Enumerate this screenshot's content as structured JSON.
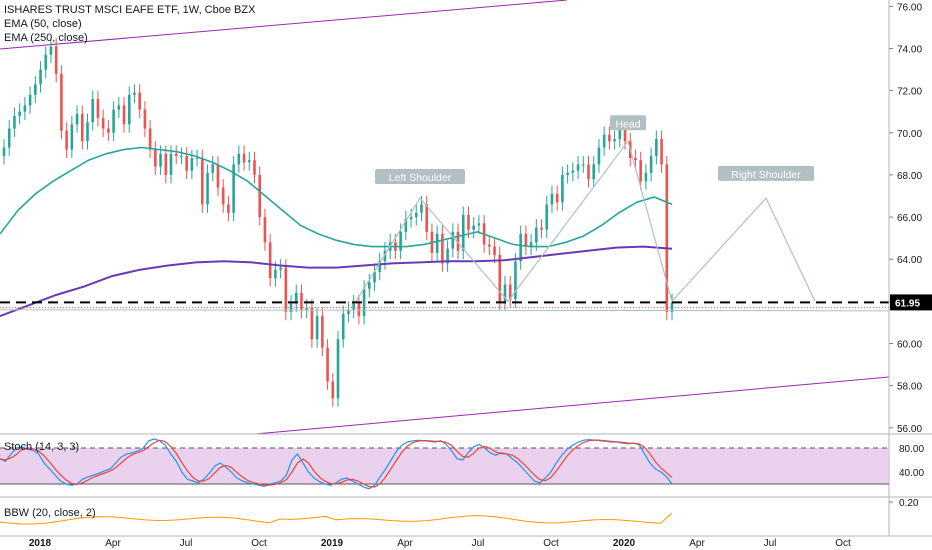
{
  "chart_data": {
    "type": "candlestick",
    "title": "ISHARES TRUST MSCI EAFE ETF, 1W, Cboe BZX",
    "indicators": [
      "EMA (50, close)",
      "EMA (250, close)"
    ],
    "price_axis": {
      "ticks": [
        "76.00",
        "74.00",
        "72.00",
        "70.00",
        "68.00",
        "66.00",
        "64.00",
        "62.00",
        "60.00",
        "58.00",
        "56.00"
      ],
      "ylim": [
        55.8,
        76.3
      ]
    },
    "time_axis": {
      "ticks": [
        "2018",
        "Apr",
        "Jul",
        "Oct",
        "2019",
        "Apr",
        "Jul",
        "Oct",
        "2020",
        "Apr",
        "Jul",
        "Oct"
      ],
      "bold": [
        "2018",
        "2019",
        "2020"
      ]
    },
    "last_price": "61.95",
    "price_series": [
      69.3,
      70.2,
      70.8,
      71.0,
      71.3,
      71.8,
      72.3,
      73.0,
      73.7,
      74.1,
      72.8,
      70.1,
      69.2,
      70.4,
      70.9,
      69.6,
      70.5,
      71.6,
      70.7,
      70.2,
      70.0,
      71.1,
      71.3,
      70.4,
      71.8,
      71.9,
      71.1,
      70.2,
      69.2,
      68.4,
      69.0,
      68.0,
      69.0,
      68.9,
      68.9,
      68.2,
      68.8,
      68.8,
      66.6,
      68.1,
      68.5,
      67.4,
      66.6,
      66.2,
      68.5,
      69.0,
      68.6,
      68.7,
      68.0,
      66.0,
      64.8,
      63.1,
      63.5,
      63.6,
      61.5,
      61.9,
      62.4,
      61.6,
      61.7,
      60.2,
      61.3,
      59.8,
      58.2,
      57.4,
      60.2,
      61.4,
      61.6,
      61.9,
      61.3,
      62.6,
      62.9,
      63.4,
      63.9,
      64.4,
      64.8,
      64.4,
      65.3,
      65.9,
      66.0,
      66.2,
      66.6,
      65.3,
      64.3,
      65.2,
      63.8,
      64.5,
      65.3,
      64.4,
      66.1,
      65.4,
      65.6,
      65.7,
      64.7,
      64.6,
      64.2,
      62.0,
      62.8,
      62.1,
      63.9,
      65.2,
      64.6,
      64.8,
      65.5,
      65.4,
      66.6,
      67.1,
      66.7,
      68.0,
      68.1,
      68.2,
      68.5,
      68.5,
      67.8,
      68.5,
      69.3,
      69.9,
      69.6,
      69.7,
      70.2,
      69.6,
      68.8,
      68.7,
      67.7,
      68.1,
      68.9,
      69.7,
      68.5,
      61.5,
      61.95
    ],
    "ema50": [
      65.2,
      66.3,
      67.1,
      67.7,
      68.2,
      68.7,
      69.0,
      69.2,
      69.3,
      69.2,
      69.1,
      68.9,
      68.6,
      68.2,
      67.7,
      67.0,
      66.3,
      65.6,
      65.2,
      64.9,
      64.7,
      64.6,
      64.6,
      64.6,
      64.7,
      64.9,
      65.1,
      65.3,
      65.0,
      64.7,
      64.6,
      64.6,
      64.8,
      65.1,
      65.6,
      66.2,
      66.7,
      66.95,
      66.6
    ],
    "ema250": [
      61.3,
      61.8,
      62.3,
      62.7,
      63.2,
      63.5,
      63.7,
      63.85,
      63.9,
      63.85,
      63.7,
      63.6,
      63.6,
      63.7,
      63.8,
      63.85,
      63.9,
      63.9,
      63.95,
      64.1,
      64.25,
      64.4,
      64.55,
      64.6,
      64.5
    ],
    "annotations": [
      "Left Shoulder",
      "Head",
      "Right Shoulder"
    ],
    "pattern": "head-and-shoulders",
    "stoch": {
      "label": "Stoch (14, 3, 3)",
      "ticks": [
        "80.00",
        "40.00"
      ],
      "k": [
        62,
        58,
        70,
        80,
        82,
        78,
        76,
        70,
        55,
        45,
        35,
        25,
        20,
        18,
        20,
        28,
        32,
        35,
        38,
        42,
        45,
        55,
        65,
        70,
        72,
        75,
        80,
        92,
        95,
        92,
        85,
        70,
        58,
        40,
        28,
        25,
        22,
        28,
        38,
        50,
        55,
        48,
        40,
        30,
        25,
        22,
        20,
        18,
        16,
        20,
        22,
        25,
        35,
        60,
        70,
        55,
        40,
        30,
        24,
        20,
        18,
        22,
        28,
        30,
        25,
        20,
        15,
        12,
        18,
        32,
        45,
        60,
        75,
        85,
        90,
        92,
        93,
        92,
        91,
        90,
        92,
        86,
        75,
        62,
        60,
        72,
        82,
        86,
        80,
        72,
        68,
        72,
        70,
        62,
        55,
        45,
        35,
        25,
        22,
        30,
        40,
        55,
        68,
        78,
        85,
        90,
        93,
        94,
        93,
        92,
        91,
        90,
        90,
        88,
        87,
        88,
        86,
        70,
        55,
        45,
        40,
        32,
        20
      ]
    },
    "bbw": {
      "label": "BBW (20, close, 2)",
      "ticks": [
        "0.20"
      ]
    },
    "colors": {
      "up": "#26a69a",
      "down": "#ef5350",
      "ema50": "#26a69a",
      "ema250": "#673ab7",
      "trendline": "#9c27b0",
      "stoch_k": "#2196f3",
      "stoch_d": "#f44336",
      "stoch_band": "#e1bee7",
      "bbw": "#ff9800",
      "pattern": "#b2bfc3",
      "price_label": "#000000"
    }
  }
}
